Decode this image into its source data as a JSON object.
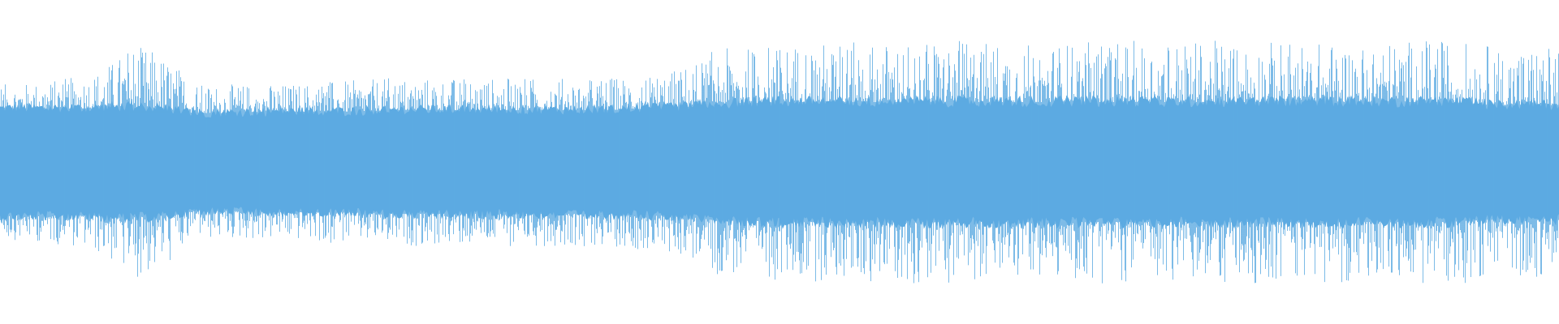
{
  "waveform": {
    "color": "#5dabe2",
    "core": [
      0.33,
      0.33,
      0.34,
      0.3,
      0.31,
      0.31,
      0.32,
      0.32,
      0.32,
      0.32,
      0.33,
      0.36,
      0.37,
      0.37,
      0.37,
      0.37,
      0.37,
      0.37,
      0.37,
      0.37,
      0.37,
      0.37,
      0.37,
      0.35
    ],
    "peak": [
      0.48,
      0.52,
      0.72,
      0.48,
      0.48,
      0.5,
      0.52,
      0.52,
      0.52,
      0.52,
      0.55,
      0.7,
      0.74,
      0.74,
      0.75,
      0.75,
      0.74,
      0.75,
      0.75,
      0.75,
      0.74,
      0.75,
      0.76,
      0.72
    ]
  }
}
